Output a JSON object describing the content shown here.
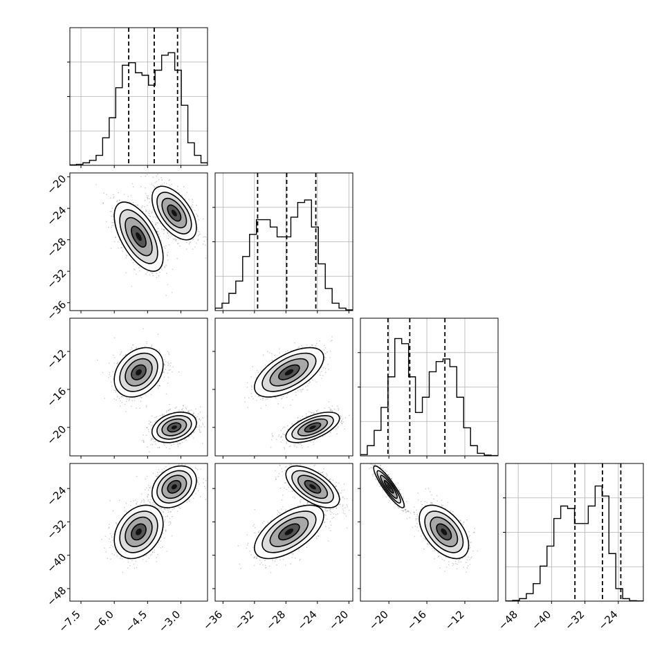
{
  "chart_data": {
    "type": "corner",
    "variables": 4,
    "grid": true,
    "axis_ticks": {
      "x": [
        [
          -7.5,
          -6.0,
          -4.5,
          -3.0
        ],
        [
          -36,
          -32,
          -28,
          -24,
          -20
        ],
        [
          -20,
          -16,
          -12
        ],
        [
          -48,
          -40,
          -32,
          -24
        ]
      ],
      "y": [
        null,
        [
          -20,
          -24,
          -28,
          -32,
          -36
        ],
        [
          -12,
          -16,
          -20
        ],
        [
          -24,
          -32,
          -40,
          -48
        ]
      ]
    },
    "x_tick_labels": [
      [
        "−7.5",
        "−6.0",
        "−4.5",
        "−3.0"
      ],
      [
        "−36",
        "−32",
        "−28",
        "−24",
        "−20"
      ],
      [
        "−20",
        "−16",
        "−12"
      ],
      [
        "−48",
        "−40",
        "−32",
        "−24"
      ]
    ],
    "y_tick_labels": [
      [],
      [
        "−20",
        "−24",
        "−28",
        "−32",
        "−36"
      ],
      [
        "−12",
        "−16",
        "−20"
      ],
      [
        "−24",
        "−32",
        "−40",
        "−48"
      ]
    ],
    "ranges": [
      [
        -8.0,
        -1.8
      ],
      [
        -37.0,
        -19.5
      ],
      [
        -23.0,
        -8.5
      ],
      [
        -51.0,
        -18.0
      ]
    ],
    "quantiles": [
      [
        -5.35,
        -4.2,
        -3.15
      ],
      [
        -31.6,
        -27.9,
        -24.2
      ],
      [
        -20.1,
        -17.8,
        -14.1
      ],
      [
        -34.4,
        -27.8,
        -23.4
      ]
    ],
    "histograms": [
      {
        "edges_start": -8.0,
        "bin_width": 0.31,
        "counts": [
          0.2,
          0.4,
          1,
          2,
          4,
          11,
          19,
          31,
          40,
          41,
          37,
          36,
          32,
          38,
          44,
          45,
          38,
          24,
          9,
          4,
          1
        ]
      },
      {
        "edges_start": -37.0,
        "bin_width": 0.875,
        "counts": [
          1,
          3,
          7,
          12,
          22,
          31,
          37,
          37,
          34,
          30,
          30,
          38,
          44,
          45,
          34,
          19,
          9,
          3,
          1,
          0.3
        ]
      },
      {
        "edges_start": -23.0,
        "bin_width": 0.73,
        "counts": [
          0.5,
          4,
          10,
          19,
          31,
          46,
          44,
          31,
          17,
          23,
          33,
          37,
          38,
          35,
          23,
          11,
          4,
          1,
          0.3,
          0.1
        ]
      },
      {
        "edges_start": -51.0,
        "bin_width": 1.65,
        "counts": [
          0.1,
          0.3,
          1,
          3,
          7,
          14,
          22,
          33,
          38,
          37,
          31,
          31,
          38,
          46,
          42,
          19,
          5,
          1,
          0.2,
          0.1
        ]
      }
    ],
    "modes": [
      {
        "mean": [
          -4.9,
          -27.6,
          -14.2,
          -34.4
        ],
        "sd": [
          0.55,
          2.2,
          1.3,
          3.2
        ]
      },
      {
        "mean": [
          -3.3,
          -24.6,
          -20.0,
          -23.6
        ],
        "sd": [
          0.5,
          1.7,
          0.8,
          2.5
        ]
      }
    ],
    "mode_corr": [
      {
        "0-1": -0.6,
        "0-2": 0.3,
        "0-3": 0.3,
        "1-2": 0.6,
        "1-3": 0.6,
        "2-3": -0.5
      },
      {
        "0-1": -0.55,
        "0-2": 0.3,
        "0-3": 0.3,
        "1-2": 0.6,
        "1-3": -0.6,
        "2-3": -0.9
      }
    ],
    "colors": {
      "line": "#000000",
      "grid": "#b0b0b0",
      "scatter": "#000000"
    }
  }
}
